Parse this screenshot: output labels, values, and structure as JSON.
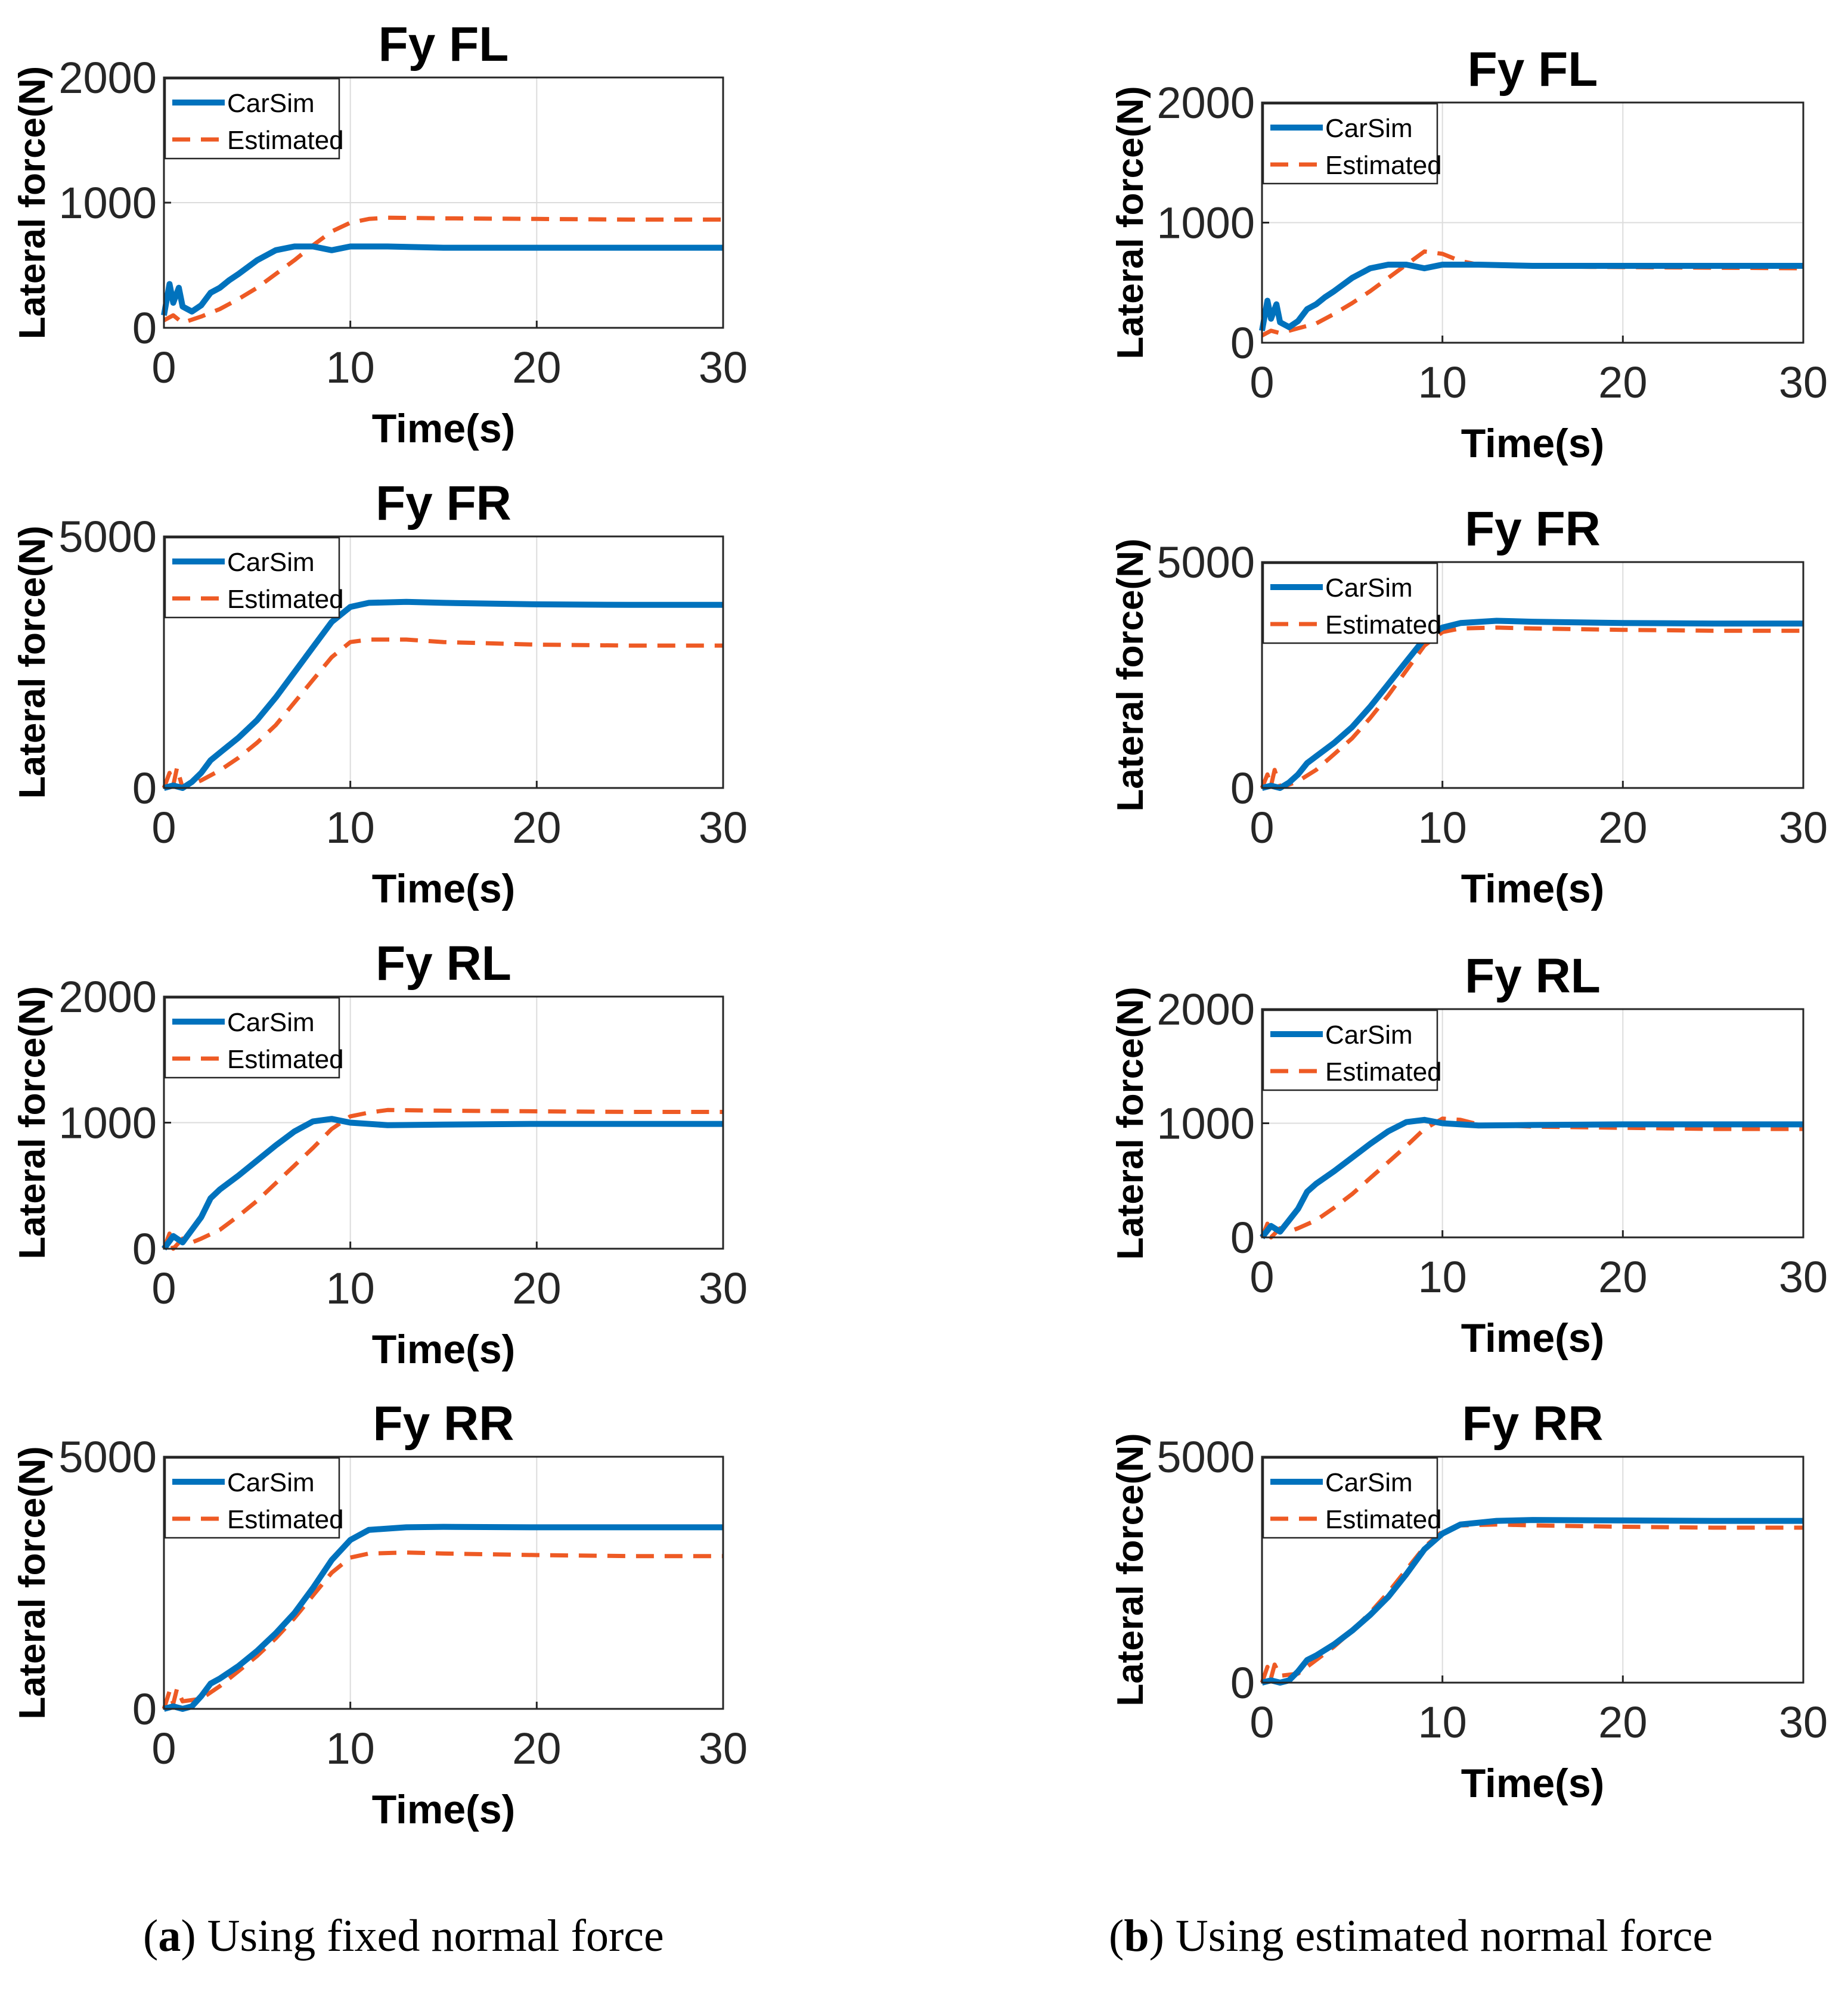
{
  "figure": {
    "colors": {
      "carsim": "#0072BD",
      "estimated": "#EE5A24",
      "axes": "#262626",
      "grid": "#DCDCDC"
    },
    "captions": [
      {
        "label": "a",
        "text": "Using fixed normal force"
      },
      {
        "label": "b",
        "text": "Using estimated normal force"
      }
    ]
  },
  "chart_data": [
    {
      "type": "line",
      "panel": "a",
      "title": "Fy FL",
      "xlabel": "Time(s)",
      "ylabel": "Lateral force(N)",
      "xlim": [
        0,
        30
      ],
      "ylim": [
        0,
        2000
      ],
      "xticks": [
        0,
        10,
        20,
        30
      ],
      "yticks": [
        0,
        1000,
        2000
      ],
      "grid": true,
      "legend": "top-left",
      "series": [
        {
          "name": "CarSim",
          "style": "solid",
          "x": [
            0,
            0.3,
            0.5,
            0.8,
            1,
            1.5,
            2,
            2.5,
            3,
            3.5,
            4,
            5,
            6,
            7,
            8,
            9,
            10,
            12,
            15,
            20,
            25,
            30
          ],
          "y": [
            100,
            350,
            200,
            320,
            170,
            130,
            180,
            280,
            320,
            380,
            430,
            540,
            620,
            650,
            650,
            620,
            650,
            650,
            640,
            640,
            640,
            640
          ]
        },
        {
          "name": "Estimated",
          "style": "dashed",
          "x": [
            0,
            0.5,
            1,
            2,
            3,
            4,
            5,
            6,
            7,
            8,
            9,
            10,
            11,
            12,
            15,
            20,
            25,
            30
          ],
          "y": [
            60,
            100,
            40,
            90,
            150,
            230,
            320,
            430,
            540,
            660,
            770,
            840,
            870,
            880,
            875,
            870,
            865,
            865
          ]
        }
      ]
    },
    {
      "type": "line",
      "panel": "a",
      "title": "Fy FR",
      "xlabel": "Time(s)",
      "ylabel": "Lateral force(N)",
      "xlim": [
        0,
        30
      ],
      "ylim": [
        0,
        5000
      ],
      "xticks": [
        0,
        10,
        20,
        30
      ],
      "yticks": [
        0,
        5000
      ],
      "grid": true,
      "legend": "top-left",
      "series": [
        {
          "name": "CarSim",
          "style": "solid",
          "x": [
            0,
            0.5,
            1,
            1.5,
            2,
            2.5,
            3,
            4,
            5,
            6,
            7,
            8,
            9,
            10,
            11,
            13,
            15,
            20,
            25,
            30
          ],
          "y": [
            0,
            50,
            0,
            120,
            300,
            550,
            700,
            1000,
            1350,
            1800,
            2300,
            2800,
            3300,
            3600,
            3680,
            3700,
            3680,
            3650,
            3640,
            3640
          ]
        },
        {
          "name": "Estimated",
          "style": "dashed",
          "x": [
            0,
            0.3,
            0.5,
            0.7,
            1,
            2,
            3,
            4,
            5,
            6,
            7,
            8,
            9,
            10,
            11,
            13,
            15,
            20,
            25,
            30
          ],
          "y": [
            0,
            300,
            50,
            400,
            0,
            150,
            350,
            600,
            900,
            1250,
            1700,
            2150,
            2600,
            2900,
            2950,
            2950,
            2900,
            2850,
            2830,
            2830
          ]
        }
      ]
    },
    {
      "type": "line",
      "panel": "a",
      "title": "Fy RL",
      "xlabel": "Time(s)",
      "ylabel": "Lateral force(N)",
      "xlim": [
        0,
        30
      ],
      "ylim": [
        0,
        2000
      ],
      "xticks": [
        0,
        10,
        20,
        30
      ],
      "yticks": [
        0,
        1000,
        2000
      ],
      "grid": true,
      "legend": "top-left",
      "series": [
        {
          "name": "CarSim",
          "style": "solid",
          "x": [
            0,
            0.5,
            1,
            1.5,
            2,
            2.5,
            3,
            4,
            5,
            6,
            7,
            8,
            9,
            10,
            12,
            15,
            20,
            25,
            30
          ],
          "y": [
            0,
            100,
            50,
            150,
            250,
            400,
            470,
            580,
            700,
            820,
            930,
            1010,
            1030,
            1000,
            980,
            985,
            990,
            990,
            990
          ]
        },
        {
          "name": "Estimated",
          "style": "dashed",
          "x": [
            0,
            0.3,
            0.5,
            1,
            1.5,
            2,
            3,
            4,
            5,
            6,
            7,
            8,
            9,
            10,
            11,
            12,
            15,
            20,
            25,
            30
          ],
          "y": [
            0,
            120,
            0,
            80,
            50,
            80,
            150,
            260,
            380,
            520,
            660,
            800,
            950,
            1050,
            1080,
            1100,
            1095,
            1090,
            1085,
            1085
          ]
        }
      ]
    },
    {
      "type": "line",
      "panel": "a",
      "title": "Fy RR",
      "xlabel": "Time(s)",
      "ylabel": "Lateral force(N)",
      "xlim": [
        0,
        30
      ],
      "ylim": [
        0,
        5000
      ],
      "xticks": [
        0,
        10,
        20,
        30
      ],
      "yticks": [
        0,
        5000
      ],
      "grid": true,
      "legend": "top-left",
      "series": [
        {
          "name": "CarSim",
          "style": "solid",
          "x": [
            0,
            0.5,
            1,
            1.5,
            2,
            2.5,
            3,
            4,
            5,
            6,
            7,
            8,
            9,
            10,
            11,
            13,
            15,
            20,
            25,
            30
          ],
          "y": [
            0,
            50,
            0,
            50,
            250,
            500,
            600,
            850,
            1150,
            1500,
            1900,
            2400,
            2950,
            3350,
            3550,
            3600,
            3610,
            3600,
            3600,
            3600
          ]
        },
        {
          "name": "Estimated",
          "style": "dashed",
          "x": [
            0,
            0.3,
            0.5,
            0.7,
            1,
            2,
            3,
            4,
            5,
            6,
            7,
            8,
            9,
            10,
            11,
            13,
            15,
            20,
            25,
            30
          ],
          "y": [
            0,
            350,
            100,
            400,
            150,
            200,
            450,
            750,
            1050,
            1400,
            1800,
            2250,
            2700,
            3000,
            3080,
            3100,
            3080,
            3050,
            3030,
            3030
          ]
        }
      ]
    },
    {
      "type": "line",
      "panel": "b",
      "title": "Fy FL",
      "xlabel": "Time(s)",
      "ylabel": "Lateral force(N)",
      "xlim": [
        0,
        30
      ],
      "ylim": [
        0,
        2000
      ],
      "xticks": [
        0,
        10,
        20,
        30
      ],
      "yticks": [
        0,
        1000,
        2000
      ],
      "grid": true,
      "legend": "top-left",
      "series": [
        {
          "name": "CarSim",
          "style": "solid",
          "x": [
            0,
            0.3,
            0.5,
            0.8,
            1,
            1.5,
            2,
            2.5,
            3,
            3.5,
            4,
            5,
            6,
            7,
            8,
            9,
            10,
            12,
            15,
            20,
            25,
            30
          ],
          "y": [
            100,
            350,
            200,
            320,
            170,
            130,
            180,
            280,
            320,
            380,
            430,
            540,
            620,
            650,
            650,
            620,
            650,
            650,
            640,
            640,
            640,
            640
          ]
        },
        {
          "name": "Estimated",
          "style": "dashed",
          "x": [
            0,
            0.5,
            1,
            2,
            3,
            4,
            5,
            6,
            7,
            8,
            9,
            10,
            11,
            12,
            13,
            15,
            20,
            25,
            30
          ],
          "y": [
            60,
            100,
            80,
            120,
            160,
            240,
            330,
            430,
            540,
            650,
            760,
            740,
            680,
            650,
            640,
            635,
            630,
            625,
            620
          ]
        }
      ]
    },
    {
      "type": "line",
      "panel": "b",
      "title": "Fy FR",
      "xlabel": "Time(s)",
      "ylabel": "Lateral force(N)",
      "xlim": [
        0,
        30
      ],
      "ylim": [
        0,
        5000
      ],
      "xticks": [
        0,
        10,
        20,
        30
      ],
      "yticks": [
        0,
        5000
      ],
      "grid": true,
      "legend": "top-left",
      "series": [
        {
          "name": "CarSim",
          "style": "solid",
          "x": [
            0,
            0.5,
            1,
            1.5,
            2,
            2.5,
            3,
            4,
            5,
            6,
            7,
            8,
            9,
            10,
            11,
            13,
            15,
            20,
            25,
            30
          ],
          "y": [
            0,
            50,
            0,
            120,
            300,
            550,
            700,
            1000,
            1350,
            1800,
            2300,
            2800,
            3300,
            3550,
            3650,
            3700,
            3680,
            3650,
            3640,
            3640
          ]
        },
        {
          "name": "Estimated",
          "style": "dashed",
          "x": [
            0,
            0.3,
            0.5,
            0.7,
            1,
            2,
            3,
            4,
            5,
            6,
            7,
            8,
            9,
            10,
            11,
            13,
            15,
            20,
            25,
            30
          ],
          "y": [
            0,
            300,
            50,
            400,
            0,
            150,
            400,
            750,
            1100,
            1550,
            2050,
            2600,
            3150,
            3450,
            3530,
            3550,
            3530,
            3500,
            3480,
            3480
          ]
        }
      ]
    },
    {
      "type": "line",
      "panel": "b",
      "title": "Fy RL",
      "xlabel": "Time(s)",
      "ylabel": "Lateral force(N)",
      "xlim": [
        0,
        30
      ],
      "ylim": [
        0,
        2000
      ],
      "xticks": [
        0,
        10,
        20,
        30
      ],
      "yticks": [
        0,
        1000,
        2000
      ],
      "grid": true,
      "legend": "top-left",
      "series": [
        {
          "name": "CarSim",
          "style": "solid",
          "x": [
            0,
            0.5,
            1,
            1.5,
            2,
            2.5,
            3,
            4,
            5,
            6,
            7,
            8,
            9,
            10,
            12,
            15,
            20,
            25,
            30
          ],
          "y": [
            0,
            100,
            50,
            150,
            250,
            400,
            470,
            580,
            700,
            820,
            930,
            1010,
            1030,
            1000,
            980,
            985,
            990,
            990,
            990
          ]
        },
        {
          "name": "Estimated",
          "style": "dashed",
          "x": [
            0,
            0.3,
            0.5,
            1,
            1.5,
            2,
            3,
            4,
            5,
            6,
            7,
            8,
            9,
            10,
            11,
            12,
            15,
            20,
            25,
            30
          ],
          "y": [
            0,
            120,
            0,
            80,
            50,
            80,
            150,
            260,
            380,
            520,
            660,
            800,
            950,
            1040,
            1030,
            990,
            970,
            960,
            950,
            950
          ]
        }
      ]
    },
    {
      "type": "line",
      "panel": "b",
      "title": "Fy RR",
      "xlabel": "Time(s)",
      "ylabel": "Lateral force(N)",
      "xlim": [
        0,
        30
      ],
      "ylim": [
        0,
        5000
      ],
      "xticks": [
        0,
        10,
        20,
        30
      ],
      "yticks": [
        0,
        5000
      ],
      "grid": true,
      "legend": "top-left",
      "series": [
        {
          "name": "CarSim",
          "style": "solid",
          "x": [
            0,
            0.5,
            1,
            1.5,
            2,
            2.5,
            3,
            4,
            5,
            6,
            7,
            8,
            9,
            10,
            11,
            13,
            15,
            20,
            25,
            30
          ],
          "y": [
            0,
            50,
            0,
            50,
            250,
            500,
            600,
            850,
            1150,
            1500,
            1900,
            2400,
            2950,
            3300,
            3500,
            3580,
            3600,
            3590,
            3580,
            3580
          ]
        },
        {
          "name": "Estimated",
          "style": "dashed",
          "x": [
            0,
            0.3,
            0.5,
            0.7,
            1,
            2,
            3,
            4,
            5,
            6,
            7,
            8,
            9,
            10,
            11,
            13,
            15,
            20,
            25,
            30
          ],
          "y": [
            0,
            350,
            100,
            400,
            150,
            200,
            500,
            800,
            1150,
            1550,
            2000,
            2500,
            3000,
            3350,
            3480,
            3500,
            3480,
            3450,
            3430,
            3430
          ]
        }
      ]
    }
  ]
}
